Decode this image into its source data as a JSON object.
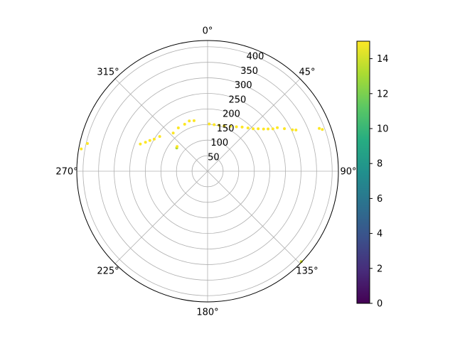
{
  "chart_data": {
    "type": "scatter",
    "projection": "polar",
    "theta_zero_location": "top",
    "theta_direction": "clockwise",
    "rlim": [
      0,
      420
    ],
    "r_ticks": [
      "50",
      "100",
      "150",
      "200",
      "250",
      "300",
      "350",
      "400"
    ],
    "r_tick_values": [
      50,
      100,
      150,
      200,
      250,
      300,
      350,
      400
    ],
    "theta_ticks": [
      "0°",
      "45°",
      "90°",
      "135°",
      "180°",
      "225°",
      "270°",
      "315°"
    ],
    "theta_tick_values": [
      0,
      45,
      90,
      135,
      180,
      225,
      270,
      315
    ],
    "grid": true,
    "colorbar": {
      "colormap": "viridis",
      "range": [
        0,
        15
      ],
      "ticks": [
        "0",
        "2",
        "4",
        "6",
        "8",
        "10",
        "12",
        "14"
      ],
      "tick_values": [
        0,
        2,
        4,
        6,
        8,
        10,
        12,
        14
      ]
    },
    "points": [
      {
        "theta": 2,
        "r": 152,
        "c": 15
      },
      {
        "theta": 8,
        "r": 151,
        "c": 15
      },
      {
        "theta": 14,
        "r": 152,
        "c": 15
      },
      {
        "theta": 20,
        "r": 155,
        "c": 15
      },
      {
        "theta": 27,
        "r": 162,
        "c": 15
      },
      {
        "theta": 33,
        "r": 170,
        "c": 15
      },
      {
        "theta": 38,
        "r": 180,
        "c": 15
      },
      {
        "theta": 43,
        "r": 190,
        "c": 15
      },
      {
        "theta": 47,
        "r": 200,
        "c": 15
      },
      {
        "theta": 50,
        "r": 212,
        "c": 15
      },
      {
        "theta": 53,
        "r": 225,
        "c": 15
      },
      {
        "theta": 55,
        "r": 237,
        "c": 15
      },
      {
        "theta": 57,
        "r": 250,
        "c": 15
      },
      {
        "theta": 58,
        "r": 264,
        "c": 15
      },
      {
        "theta": 61,
        "r": 282,
        "c": 15
      },
      {
        "theta": 64,
        "r": 303,
        "c": 15
      },
      {
        "theta": 65,
        "r": 313,
        "c": 15
      },
      {
        "theta": 69,
        "r": 384,
        "c": 15
      },
      {
        "theta": 70,
        "r": 392,
        "c": 15
      },
      {
        "theta": 134,
        "r": 418,
        "c": 14
      },
      {
        "theta": 345,
        "r": 168,
        "c": 15
      },
      {
        "theta": 340,
        "r": 172,
        "c": 15
      },
      {
        "theta": 334,
        "r": 168,
        "c": 15
      },
      {
        "theta": 326,
        "r": 168,
        "c": 15
      },
      {
        "theta": 318,
        "r": 165,
        "c": 15
      },
      {
        "theta": 307,
        "r": 124,
        "c": 13
      },
      {
        "theta": 309,
        "r": 126,
        "c": 15
      },
      {
        "theta": 306,
        "r": 190,
        "c": 15
      },
      {
        "theta": 301,
        "r": 200,
        "c": 15
      },
      {
        "theta": 298,
        "r": 210,
        "c": 15
      },
      {
        "theta": 295,
        "r": 220,
        "c": 15
      },
      {
        "theta": 292,
        "r": 233,
        "c": 15
      },
      {
        "theta": 283,
        "r": 396,
        "c": 15
      },
      {
        "theta": 280,
        "r": 412,
        "c": 15
      }
    ]
  }
}
